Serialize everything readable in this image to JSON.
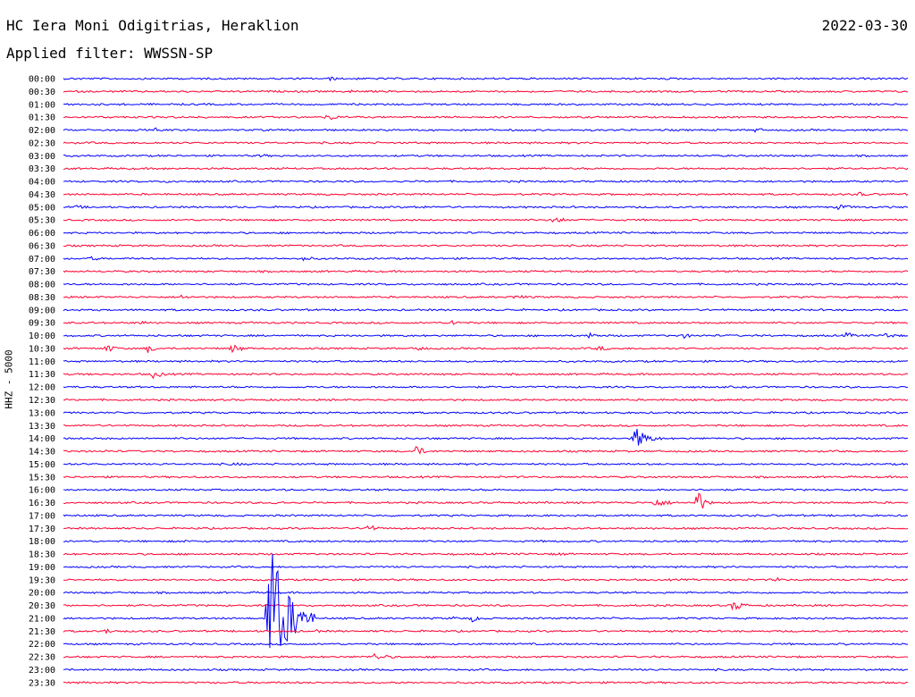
{
  "header": {
    "station": "HC Iera Moni Odigitrias, Heraklion",
    "date": "2022-03-30",
    "filter": "Applied filter: WWSSN-SP"
  },
  "chart_data": {
    "type": "line",
    "ylabel": "HHZ - 5000",
    "trace_colors": [
      "#0000ff",
      "#ff0033"
    ],
    "row_labels": [
      "00:00",
      "00:30",
      "01:00",
      "01:30",
      "02:00",
      "02:30",
      "03:00",
      "03:30",
      "04:00",
      "04:30",
      "05:00",
      "05:30",
      "06:00",
      "06:30",
      "07:00",
      "07:30",
      "08:00",
      "08:30",
      "09:00",
      "09:30",
      "10:00",
      "10:30",
      "11:00",
      "11:30",
      "12:00",
      "12:30",
      "13:00",
      "13:30",
      "14:00",
      "14:30",
      "15:00",
      "15:30",
      "16:00",
      "16:30",
      "17:00",
      "17:30",
      "18:00",
      "18:30",
      "19:00",
      "19:30",
      "20:00",
      "20:30",
      "21:00",
      "21:30",
      "22:00",
      "22:30",
      "23:00",
      "23:30"
    ],
    "x_unit": "minutes",
    "x_range": [
      0,
      30
    ],
    "events": [
      {
        "row": 0,
        "t": 9.5,
        "amp": 3,
        "dur": 0.6
      },
      {
        "row": 1,
        "t": 10.2,
        "amp": 2,
        "dur": 1.5
      },
      {
        "row": 3,
        "t": 9.4,
        "amp": 5,
        "dur": 0.8
      },
      {
        "row": 4,
        "t": 3.3,
        "amp": 3,
        "dur": 0.4
      },
      {
        "row": 4,
        "t": 24.6,
        "amp": 4,
        "dur": 0.6
      },
      {
        "row": 6,
        "t": 7.0,
        "amp": 3,
        "dur": 0.7
      },
      {
        "row": 7,
        "t": 3.5,
        "amp": 1.5,
        "dur": 1.2
      },
      {
        "row": 8,
        "t": 3.7,
        "amp": 2,
        "dur": 1.5
      },
      {
        "row": 9,
        "t": 28.3,
        "amp": 4,
        "dur": 0.5
      },
      {
        "row": 10,
        "t": 0.5,
        "amp": 2.5,
        "dur": 1.0
      },
      {
        "row": 10,
        "t": 12.5,
        "amp": 2,
        "dur": 2.0
      },
      {
        "row": 10,
        "t": 27.5,
        "amp": 3,
        "dur": 2.0
      },
      {
        "row": 11,
        "t": 17.4,
        "amp": 5,
        "dur": 1.0
      },
      {
        "row": 14,
        "t": 8.5,
        "amp": 3,
        "dur": 1.2
      },
      {
        "row": 14,
        "t": 1.0,
        "amp": 2.5,
        "dur": 1.0
      },
      {
        "row": 17,
        "t": 4.2,
        "amp": 3,
        "dur": 1.0
      },
      {
        "row": 17,
        "t": 16.0,
        "amp": 3,
        "dur": 1.5
      },
      {
        "row": 19,
        "t": 13.8,
        "amp": 4,
        "dur": 0.7
      },
      {
        "row": 19,
        "t": 2.8,
        "amp": 3,
        "dur": 0.6
      },
      {
        "row": 20,
        "t": 18.7,
        "amp": 4,
        "dur": 0.8
      },
      {
        "row": 20,
        "t": 22.0,
        "amp": 3,
        "dur": 1.0
      },
      {
        "row": 20,
        "t": 27.8,
        "amp": 4,
        "dur": 0.8
      },
      {
        "row": 20,
        "t": 29.2,
        "amp": 4,
        "dur": 0.8
      },
      {
        "row": 21,
        "t": 1.5,
        "amp": 5,
        "dur": 1.0
      },
      {
        "row": 21,
        "t": 3.0,
        "amp": 5,
        "dur": 0.8
      },
      {
        "row": 21,
        "t": 6.0,
        "amp": 5,
        "dur": 1.2
      },
      {
        "row": 21,
        "t": 12.5,
        "amp": 3,
        "dur": 1.2
      },
      {
        "row": 21,
        "t": 19.0,
        "amp": 3,
        "dur": 1.2
      },
      {
        "row": 23,
        "t": 3.2,
        "amp": 5,
        "dur": 1.0
      },
      {
        "row": 28,
        "t": 20.3,
        "amp": 13,
        "dur": 1.2
      },
      {
        "row": 29,
        "t": 12.5,
        "amp": 7,
        "dur": 0.8
      },
      {
        "row": 29,
        "t": 1.5,
        "amp": 2,
        "dur": 0.8
      },
      {
        "row": 30,
        "t": 6.0,
        "amp": 2,
        "dur": 2.0
      },
      {
        "row": 33,
        "t": 22.5,
        "amp": 17,
        "dur": 0.6
      },
      {
        "row": 33,
        "t": 21.0,
        "amp": 5,
        "dur": 1.5
      },
      {
        "row": 33,
        "t": 7.5,
        "amp": 3,
        "dur": 1.0
      },
      {
        "row": 35,
        "t": 10.8,
        "amp": 6,
        "dur": 0.8
      },
      {
        "row": 36,
        "t": 4.3,
        "amp": 2,
        "dur": 1.0
      },
      {
        "row": 36,
        "t": 26.5,
        "amp": 2,
        "dur": 1.0
      },
      {
        "row": 37,
        "t": 17.5,
        "amp": 2,
        "dur": 2.0
      },
      {
        "row": 39,
        "t": 25.3,
        "amp": 3,
        "dur": 0.6
      },
      {
        "row": 41,
        "t": 23.8,
        "amp": 7,
        "dur": 0.9
      },
      {
        "row": 42,
        "t": 7.3,
        "amp": 95,
        "dur": 1.6
      },
      {
        "row": 42,
        "t": 14.5,
        "amp": 4,
        "dur": 1.2
      },
      {
        "row": 42,
        "t": 13.8,
        "amp": 3,
        "dur": 0.6
      },
      {
        "row": 43,
        "t": 1.5,
        "amp": 3,
        "dur": 1.2
      },
      {
        "row": 43,
        "t": 9.0,
        "amp": 2,
        "dur": 0.8
      },
      {
        "row": 45,
        "t": 11.0,
        "amp": 4,
        "dur": 1.6
      }
    ]
  }
}
